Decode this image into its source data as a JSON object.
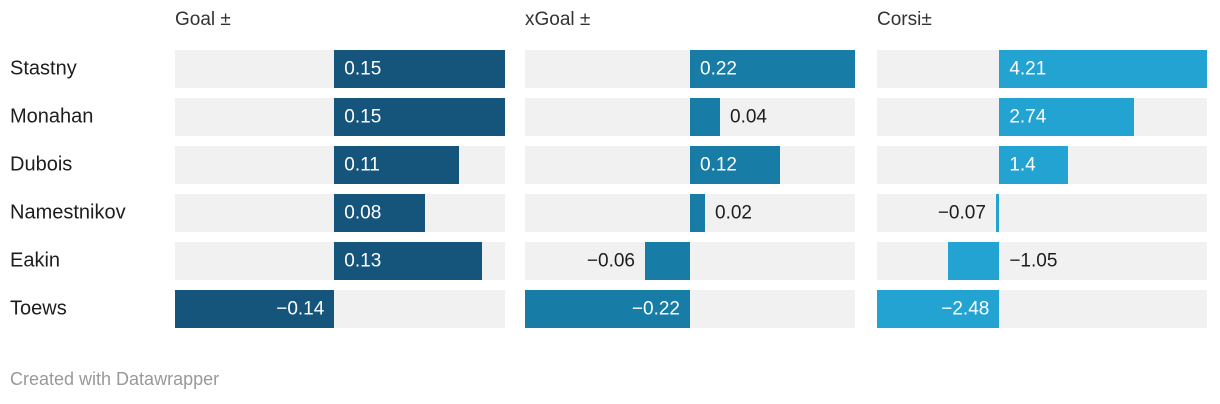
{
  "footer": {
    "credit": "Created with Datawrapper"
  },
  "colors": {
    "goal_bar": "#15557C",
    "xgoal_bar": "#177CA6",
    "corsi_bar": "#22A3D2",
    "track_background": "#F1F1F2",
    "label_dark": "#1D1D1D",
    "label_light": "#FFFFFF",
    "header_text": "#333333",
    "footer_text": "#999999"
  },
  "chart_data": {
    "type": "bar",
    "orientation": "horizontal",
    "title": "",
    "grid": false,
    "categories": [
      "Stastny",
      "Monahan",
      "Dubois",
      "Namestnikov",
      "Eakin",
      "Toews"
    ],
    "series": [
      {
        "name": "Goal ±",
        "values": [
          0.15,
          0.15,
          0.11,
          0.08,
          0.13,
          -0.14
        ],
        "labels": [
          "0.15",
          "0.15",
          "0.11",
          "0.08",
          "0.13",
          "−0.14"
        ],
        "label_pos": [
          "in",
          "in",
          "in",
          "in",
          "in",
          "in"
        ],
        "color": "#15557C",
        "axis_min": -0.14,
        "axis_max": 0.15
      },
      {
        "name": "xGoal ±",
        "values": [
          0.22,
          0.04,
          0.12,
          0.02,
          -0.06,
          -0.22
        ],
        "labels": [
          "0.22",
          "0.04",
          "0.12",
          "0.02",
          "−0.06",
          "−0.22"
        ],
        "label_pos": [
          "in",
          "out-right",
          "in",
          "out-right",
          "out-left",
          "in"
        ],
        "color": "#177CA6",
        "axis_min": -0.22,
        "axis_max": 0.22
      },
      {
        "name": "Corsi±",
        "values": [
          4.21,
          2.74,
          1.4,
          -0.07,
          -1.05,
          -2.48
        ],
        "labels": [
          "4.21",
          "2.74",
          "1.4",
          "−0.07",
          "−1.05",
          "−2.48"
        ],
        "label_pos": [
          "in",
          "in",
          "in",
          "out-left",
          "out-zero-right",
          "in"
        ],
        "color": "#22A3D2",
        "axis_min": -2.48,
        "axis_max": 4.21
      }
    ]
  }
}
